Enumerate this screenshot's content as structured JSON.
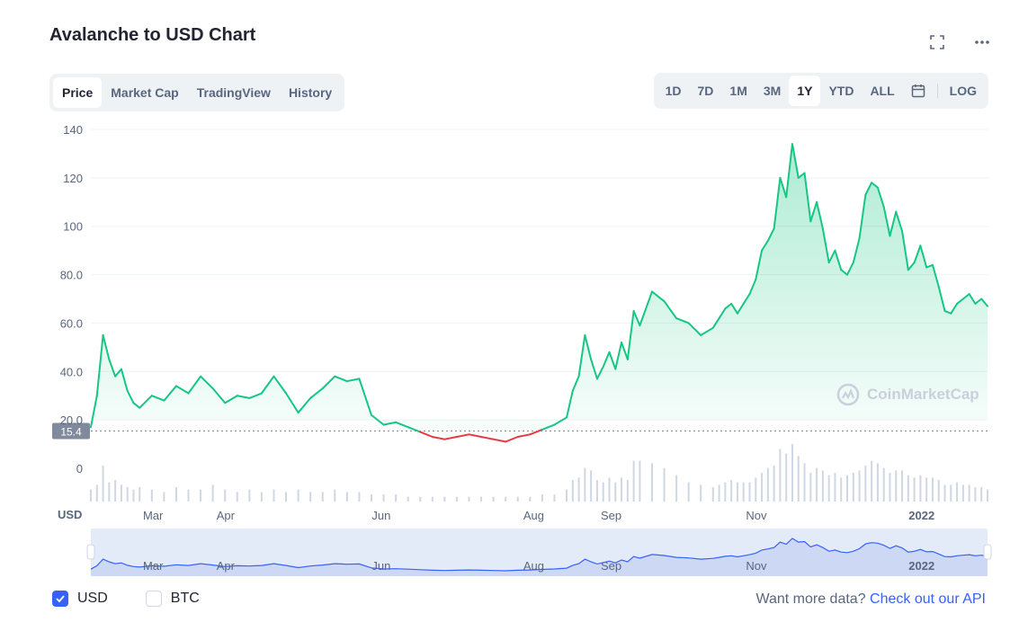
{
  "header": {
    "title": "Avalanche to USD Chart"
  },
  "icons": {
    "fullscreen": "fullscreen-icon",
    "more": "more-icon",
    "calendar": "calendar-icon"
  },
  "tabs": [
    {
      "label": "Price",
      "active": true
    },
    {
      "label": "Market Cap",
      "active": false
    },
    {
      "label": "TradingView",
      "active": false
    },
    {
      "label": "History",
      "active": false
    }
  ],
  "ranges": [
    {
      "label": "1D",
      "active": false
    },
    {
      "label": "7D",
      "active": false
    },
    {
      "label": "1M",
      "active": false
    },
    {
      "label": "3M",
      "active": false
    },
    {
      "label": "1Y",
      "active": true
    },
    {
      "label": "YTD",
      "active": false
    },
    {
      "label": "ALL",
      "active": false
    }
  ],
  "log_label": "LOG",
  "watermark": "CoinMarketCap",
  "legend": [
    {
      "label": "USD",
      "checked": true
    },
    {
      "label": "BTC",
      "checked": false
    }
  ],
  "footer": {
    "text": "Want more data? ",
    "link": "Check out our API"
  },
  "colors": {
    "up": "#16c784",
    "down": "#ea3943",
    "accent": "#3861fb",
    "text_muted": "#58667e"
  },
  "chart_data": {
    "type": "line",
    "ylabel": "USD",
    "ylim": [
      0,
      140
    ],
    "yticks": [
      0,
      20,
      40,
      60,
      80,
      100,
      120,
      140
    ],
    "ytick_labels": [
      "0",
      "20.0",
      "40.0",
      "60.0",
      "80.0",
      "100",
      "120",
      "140"
    ],
    "x_labels": [
      "Mar",
      "Apr",
      "Jun",
      "Aug",
      "Sep",
      "Nov",
      "2022"
    ],
    "x_label_pos": [
      10.2,
      22.1,
      47.6,
      72.6,
      85.3,
      109.1,
      136.2
    ],
    "reference_value": 15.4,
    "series": [
      {
        "x": [
          0,
          1,
          2,
          3,
          4,
          5,
          6,
          7,
          8,
          10,
          12,
          14,
          16,
          18,
          20,
          22,
          24,
          26,
          28,
          30,
          32,
          34,
          36,
          38,
          40,
          42,
          44,
          46,
          48,
          50,
          52,
          54,
          56,
          58,
          60,
          62,
          64,
          66,
          68,
          70,
          72,
          74,
          76,
          78,
          79,
          80,
          81,
          82,
          83,
          84,
          85,
          86,
          87,
          88,
          89,
          90,
          92,
          94,
          96,
          98,
          100,
          102,
          103,
          104,
          105,
          106,
          107,
          108,
          109,
          110,
          111,
          112,
          113,
          114,
          115,
          116,
          117,
          118,
          119,
          120,
          121,
          122,
          123,
          124,
          125,
          126,
          127,
          128,
          129,
          130,
          131,
          132,
          133,
          134,
          135,
          136,
          137,
          138,
          139,
          140,
          141,
          142,
          143,
          144,
          145,
          146,
          147
        ],
        "values": [
          17,
          30,
          55,
          45,
          38,
          41,
          32,
          27,
          25,
          30,
          28,
          34,
          31,
          38,
          33,
          27,
          30,
          29,
          31,
          38,
          31,
          23,
          29,
          33,
          38,
          36,
          37,
          22,
          18,
          19,
          17,
          15,
          13,
          12,
          13,
          14,
          13,
          12,
          11,
          13,
          14,
          16,
          18,
          21,
          32,
          38,
          55,
          45,
          37,
          42,
          48,
          41,
          52,
          45,
          65,
          59,
          73,
          69,
          62,
          60,
          55,
          58,
          62,
          66,
          68,
          64,
          68,
          72,
          78,
          90,
          94,
          99,
          120,
          112,
          134,
          120,
          122,
          102,
          110,
          99,
          85,
          90,
          82,
          80,
          85,
          95,
          113,
          118,
          116,
          108,
          96,
          106,
          98,
          82,
          85,
          92,
          83,
          84,
          75,
          65,
          64,
          68,
          70,
          72,
          68,
          70,
          67
        ]
      }
    ],
    "volume_values": [
      5,
      7,
      15,
      8,
      9,
      7,
      6,
      5,
      6,
      5,
      4,
      6,
      5,
      5,
      7,
      5,
      4,
      5,
      4,
      5,
      4,
      5,
      4,
      4,
      5,
      4,
      4,
      3,
      3,
      3,
      2,
      2,
      2,
      2,
      2,
      2,
      2,
      2,
      2,
      2,
      2,
      3,
      3,
      5,
      9,
      10,
      14,
      13,
      9,
      8,
      10,
      8,
      10,
      9,
      17,
      17,
      16,
      14,
      11,
      8,
      7,
      6,
      7,
      8,
      9,
      8,
      8,
      8,
      10,
      12,
      14,
      15,
      22,
      20,
      24,
      19,
      16,
      12,
      14,
      13,
      11,
      12,
      10,
      11,
      12,
      13,
      15,
      17,
      16,
      14,
      12,
      13,
      13,
      11,
      10,
      11,
      10,
      10,
      9,
      7,
      7,
      8,
      7,
      7,
      6,
      6,
      5
    ]
  }
}
